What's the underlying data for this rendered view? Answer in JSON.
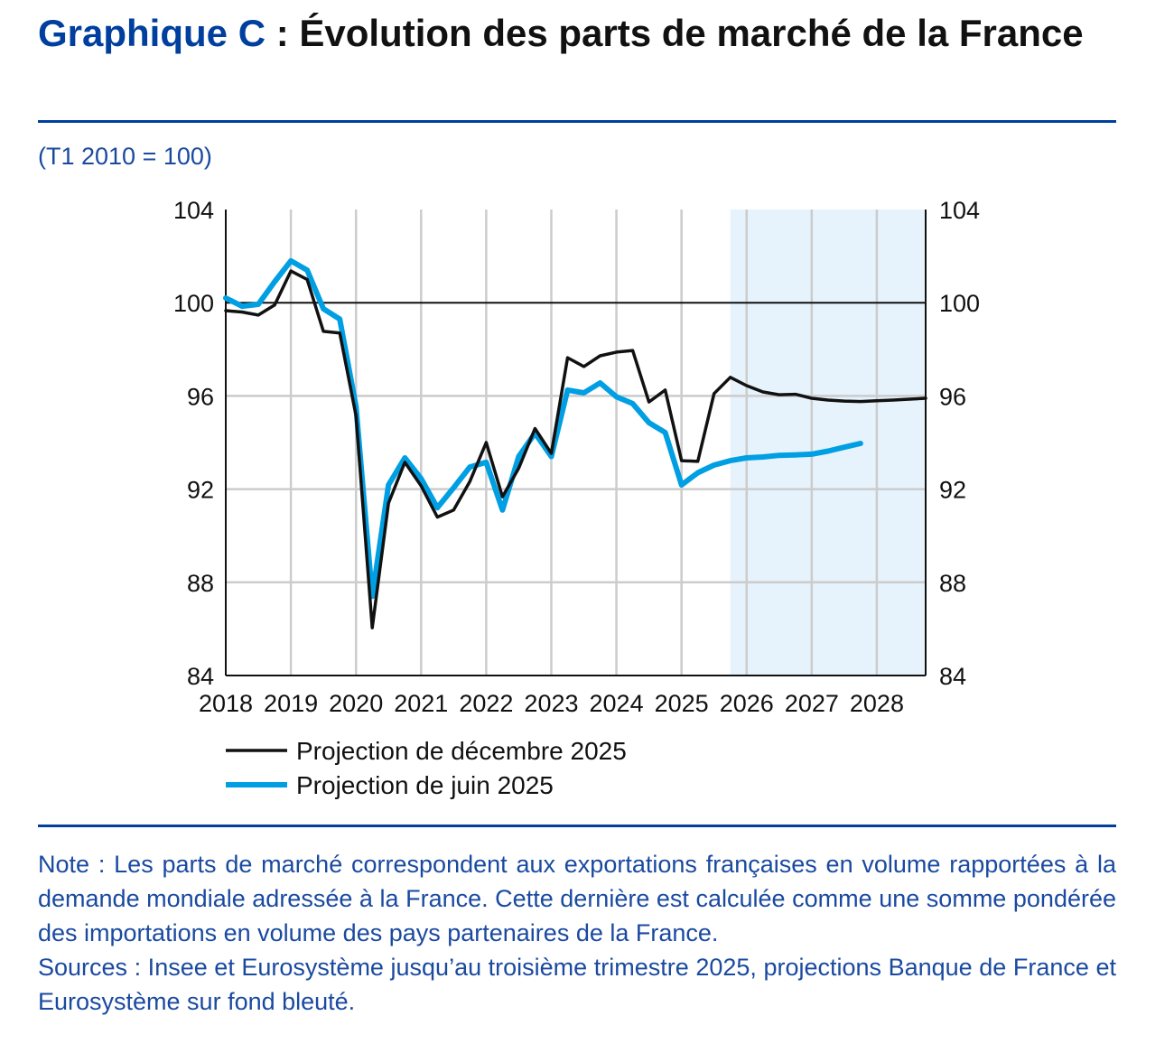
{
  "title": {
    "prefix": "Graphique C",
    "text": " : Évolution des parts de marché de la France"
  },
  "unit_label": "(T1 2010 = 100)",
  "chart_data": {
    "type": "line",
    "title": "Graphique C : Évolution des parts de marché de la France",
    "subtitle": "(T1 2010 = 100)",
    "xlabel": "",
    "ylabel": "",
    "x_tick_labels": [
      "2018",
      "2019",
      "2020",
      "2021",
      "2022",
      "2023",
      "2024",
      "2025",
      "2026",
      "2027",
      "2028"
    ],
    "xlim": [
      2018,
      2028.75
    ],
    "ylim": [
      84,
      104
    ],
    "y_ticks": [
      84,
      88,
      92,
      96,
      100,
      104
    ],
    "grid": true,
    "reference_line": 100,
    "projection_shading": {
      "from": 2025.75,
      "to": 2028.75,
      "color": "#e6f3fc"
    },
    "legend_position": "bottom",
    "x_start": 2018.0,
    "x_step": 0.25,
    "series": [
      {
        "name": "Projection de décembre 2025",
        "color": "#111111",
        "values": [
          99.66,
          99.6,
          99.47,
          99.9,
          101.36,
          101.0,
          98.77,
          98.7,
          95.16,
          86.05,
          91.4,
          93.15,
          92.14,
          90.8,
          91.1,
          92.33,
          94.0,
          91.67,
          92.9,
          94.6,
          93.53,
          97.64,
          97.26,
          97.72,
          97.88,
          97.95,
          95.74,
          96.25,
          93.22,
          93.19,
          96.1,
          96.8,
          96.44,
          96.17,
          96.05,
          96.07,
          95.9,
          95.82,
          95.78,
          95.76,
          95.79,
          95.82,
          95.86,
          95.9
        ]
      },
      {
        "name": "Projection de juin 2025",
        "color": "#009fe3",
        "values": [
          100.2,
          99.85,
          99.93,
          100.9,
          101.8,
          101.4,
          99.74,
          99.3,
          95.55,
          87.4,
          92.18,
          93.34,
          92.45,
          91.2,
          92.06,
          92.95,
          93.15,
          91.1,
          93.4,
          94.4,
          93.4,
          96.25,
          96.13,
          96.56,
          95.96,
          95.67,
          94.85,
          94.43,
          92.18,
          92.7,
          93.03,
          93.22,
          93.34,
          93.38,
          93.45,
          93.47,
          93.5,
          93.63,
          93.8,
          93.96
        ]
      }
    ]
  },
  "note": "Note : Les parts de marché correspondent aux exportations françaises en volume rapportées à la demande mondiale adressée à la France. Cette dernière est calculée comme une somme pondérée des importations en volume des pays partenaires de la France.",
  "sources": "Sources : Insee et Eurosystème jusqu’au troisième trimestre 2025, projections Banque de France et Eurosystème sur fond bleuté.",
  "colors": {
    "accent": "#003f9e",
    "text_blue": "#1a4aa0"
  }
}
